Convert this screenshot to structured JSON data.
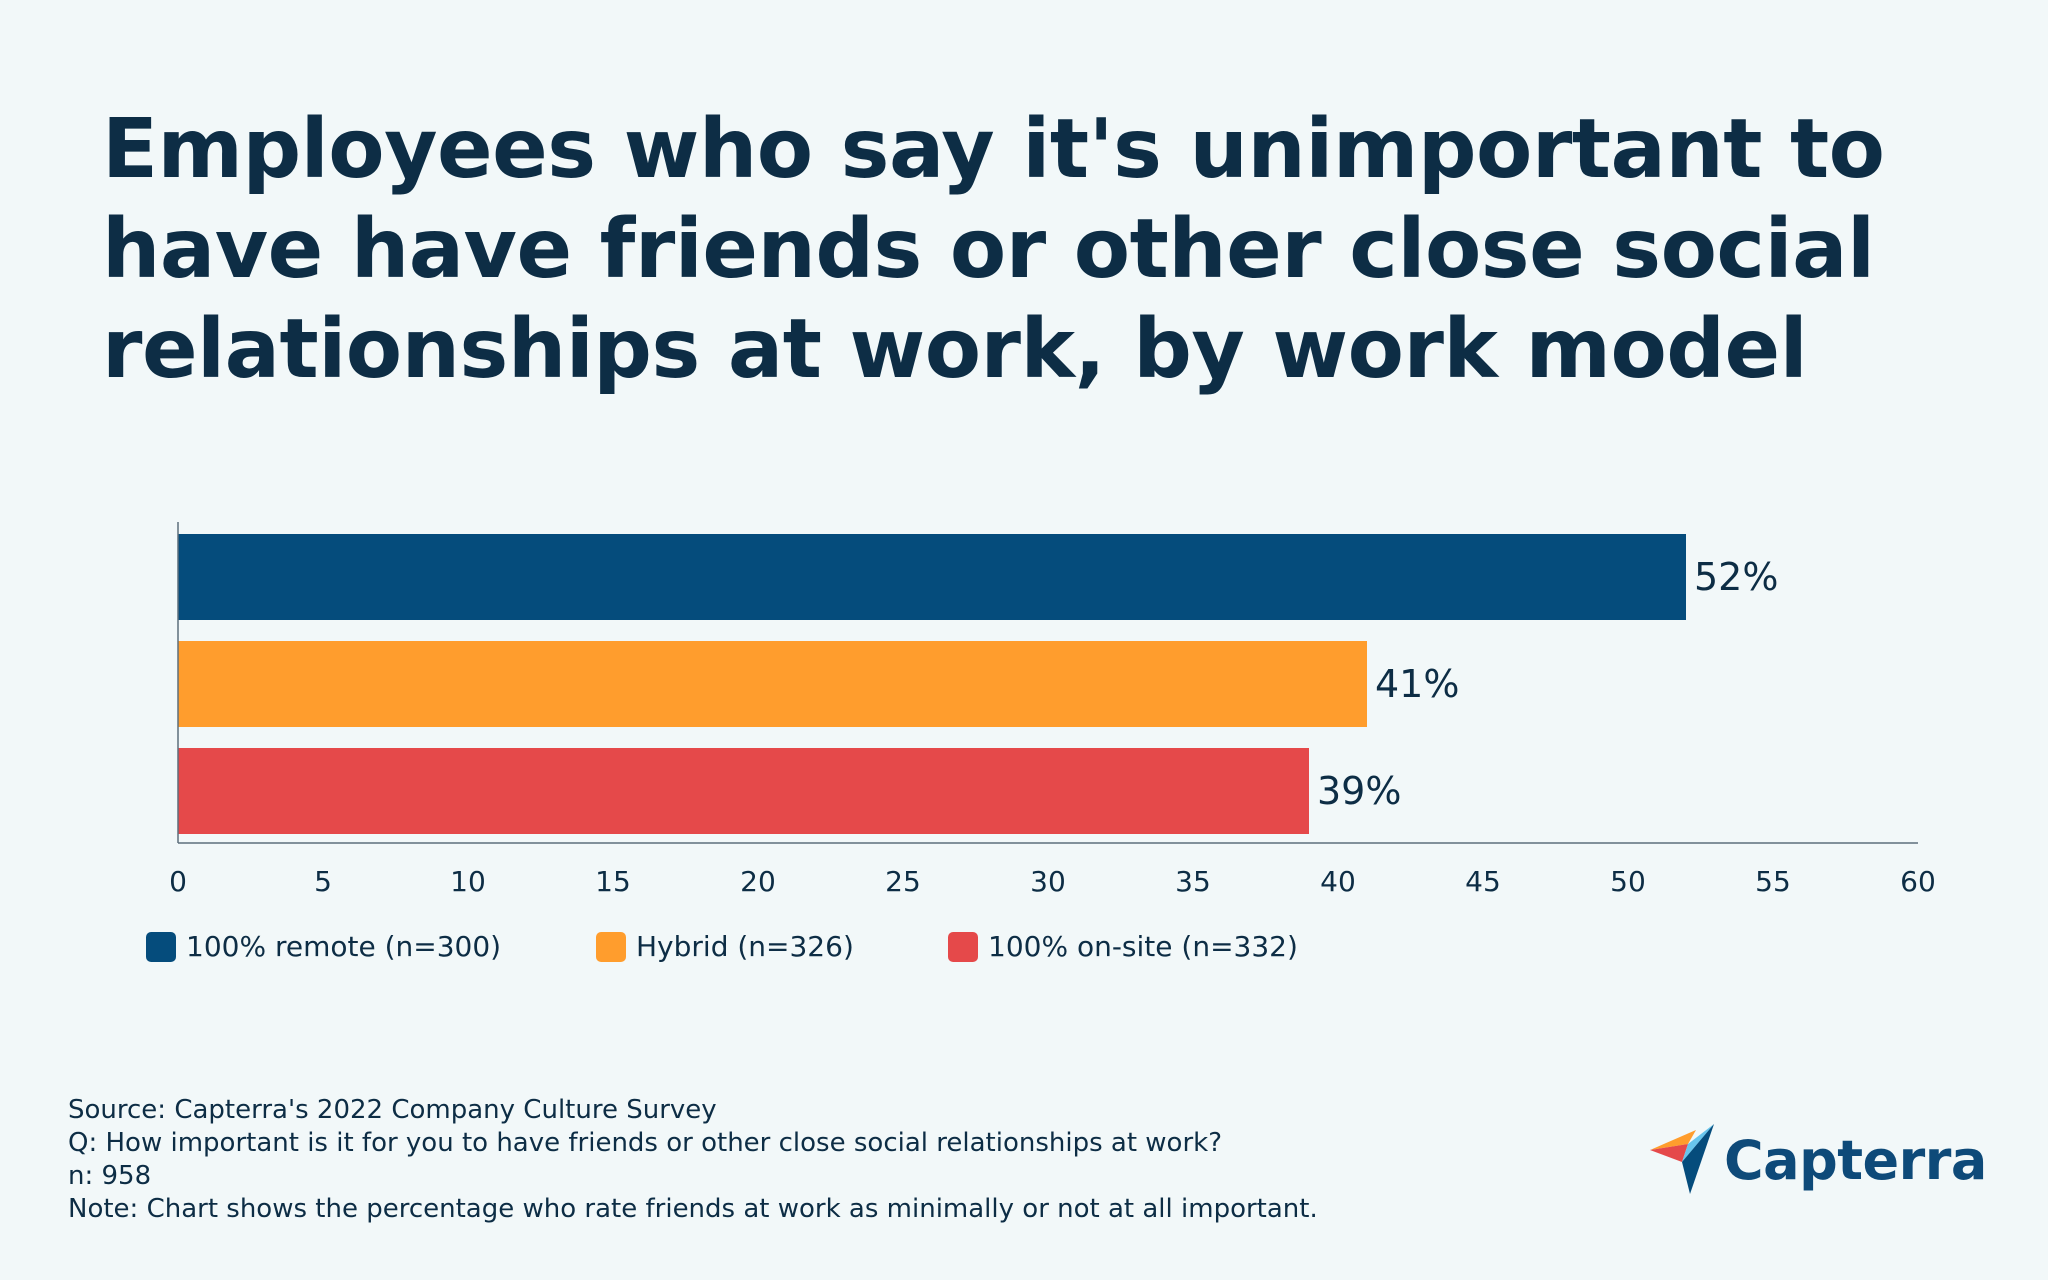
{
  "title": "Employees who say it's unimportant to have have friends or other close social relationships at work, by work model",
  "colors": {
    "remote": "#054c7c",
    "hybrid": "#ff9d2d",
    "onsite": "#e5494a",
    "text": "#0d2d45"
  },
  "chart_data": {
    "type": "bar",
    "orientation": "horizontal",
    "categories": [
      "100% remote (n=300)",
      "Hybrid (n=326)",
      "100% on-site (n=332)"
    ],
    "values": [
      52,
      41,
      39
    ],
    "data_labels": [
      "52%",
      "41%",
      "39%"
    ],
    "xlim": [
      0,
      60
    ],
    "x_ticks": [
      0,
      5,
      10,
      15,
      20,
      25,
      30,
      35,
      40,
      45,
      50,
      55,
      60
    ],
    "grid": false,
    "legend_position": "bottom-left"
  },
  "legend": [
    {
      "label": "100% remote (n=300)",
      "color": "#054c7c"
    },
    {
      "label": "Hybrid (n=326)",
      "color": "#ff9d2d"
    },
    {
      "label": "100% on-site (n=332)",
      "color": "#e5494a"
    }
  ],
  "footer": {
    "source": "Source: Capterra's 2022 Company Culture Survey",
    "question": "Q: How important is it for you to have friends or other close social relationships at work?",
    "n": "n: 958",
    "note": "Note: Chart shows the percentage who rate friends at work as minimally or not at all important."
  },
  "logo": {
    "text": "Capterra",
    "icon": "capterra-arrow-icon"
  }
}
